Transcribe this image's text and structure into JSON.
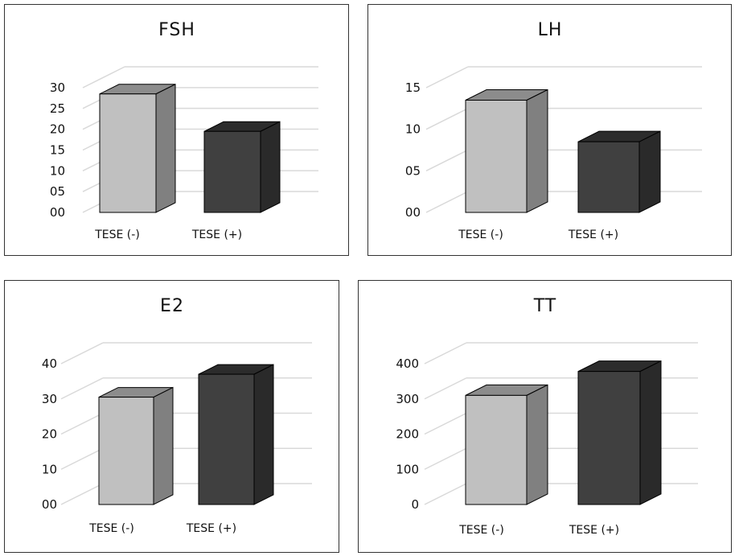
{
  "colors": {
    "bar_neg_front": "#c0c0c0",
    "bar_neg_top": "#8c8c8c",
    "bar_neg_side": "#808080",
    "bar_pos_front": "#404040",
    "bar_pos_top": "#2c2c2c",
    "bar_pos_side": "#2a2a2a",
    "grid": "#d9d9d9",
    "edge": "#000000"
  },
  "chart_data": [
    {
      "type": "bar",
      "title": "FSH",
      "categories": [
        "TESE (-)",
        "TESE (+)"
      ],
      "values": [
        28.5,
        19.5
      ],
      "ylim": [
        0,
        30
      ],
      "yticks": [
        "00",
        "05",
        "10",
        "15",
        "20",
        "25",
        "30"
      ],
      "grid": true
    },
    {
      "type": "bar",
      "title": "LH",
      "categories": [
        "TESE (-)",
        "TESE (+)"
      ],
      "values": [
        13.5,
        8.5
      ],
      "ylim": [
        0,
        15
      ],
      "yticks": [
        "00",
        "05",
        "10",
        "15"
      ],
      "grid": true
    },
    {
      "type": "bar",
      "title": "E2",
      "categories": [
        "TESE (-)",
        "TESE (+)"
      ],
      "values": [
        30.5,
        37
      ],
      "ylim": [
        0,
        40
      ],
      "yticks": [
        "00",
        "10",
        "20",
        "30",
        "40"
      ],
      "grid": true
    },
    {
      "type": "bar",
      "title": "TT",
      "categories": [
        "TESE (-)",
        "TESE (+)"
      ],
      "values": [
        310,
        378
      ],
      "ylim": [
        0,
        400
      ],
      "yticks": [
        "0",
        "100",
        "200",
        "300",
        "400"
      ],
      "grid": true
    }
  ]
}
